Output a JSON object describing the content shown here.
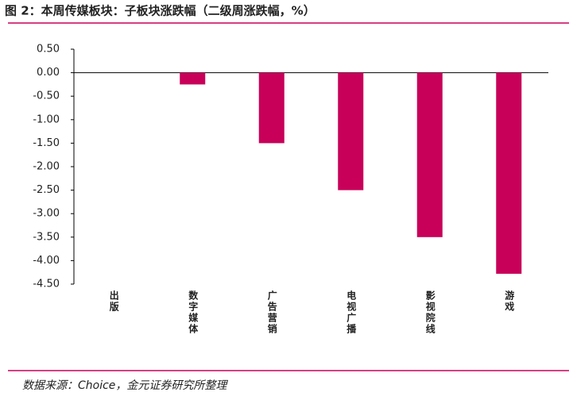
{
  "chart_data": {
    "type": "bar",
    "title": "图 2：本周传媒板块：子板块涨跌幅（二级周涨跌幅，%）",
    "source": "数据来源：Choice，金元证券研究所整理",
    "categories": [
      "出版",
      "数字媒体",
      "广告营销",
      "电视广播",
      "影视院线",
      "游戏"
    ],
    "values": [
      0,
      -0.25,
      -1.5,
      -2.5,
      -3.5,
      -4.28
    ],
    "color": "#c8005a",
    "ylim": [
      -4.5,
      0.5
    ],
    "yticks": [
      {
        "value": 0.5,
        "label": "0.50"
      },
      {
        "value": 0,
        "label": "0.00"
      },
      {
        "value": -0.5,
        "label": "-0.50"
      },
      {
        "value": -1,
        "label": "-1.00"
      },
      {
        "value": -1.5,
        "label": "-1.50"
      },
      {
        "value": -2,
        "label": "-2.00"
      },
      {
        "value": -2.5,
        "label": "-2.50"
      },
      {
        "value": -3,
        "label": "-3.00"
      },
      {
        "value": -3.5,
        "label": "-3.50"
      },
      {
        "value": -4,
        "label": "-4.00"
      },
      {
        "value": -4.5,
        "label": "-4.50"
      }
    ],
    "grid": false
  }
}
